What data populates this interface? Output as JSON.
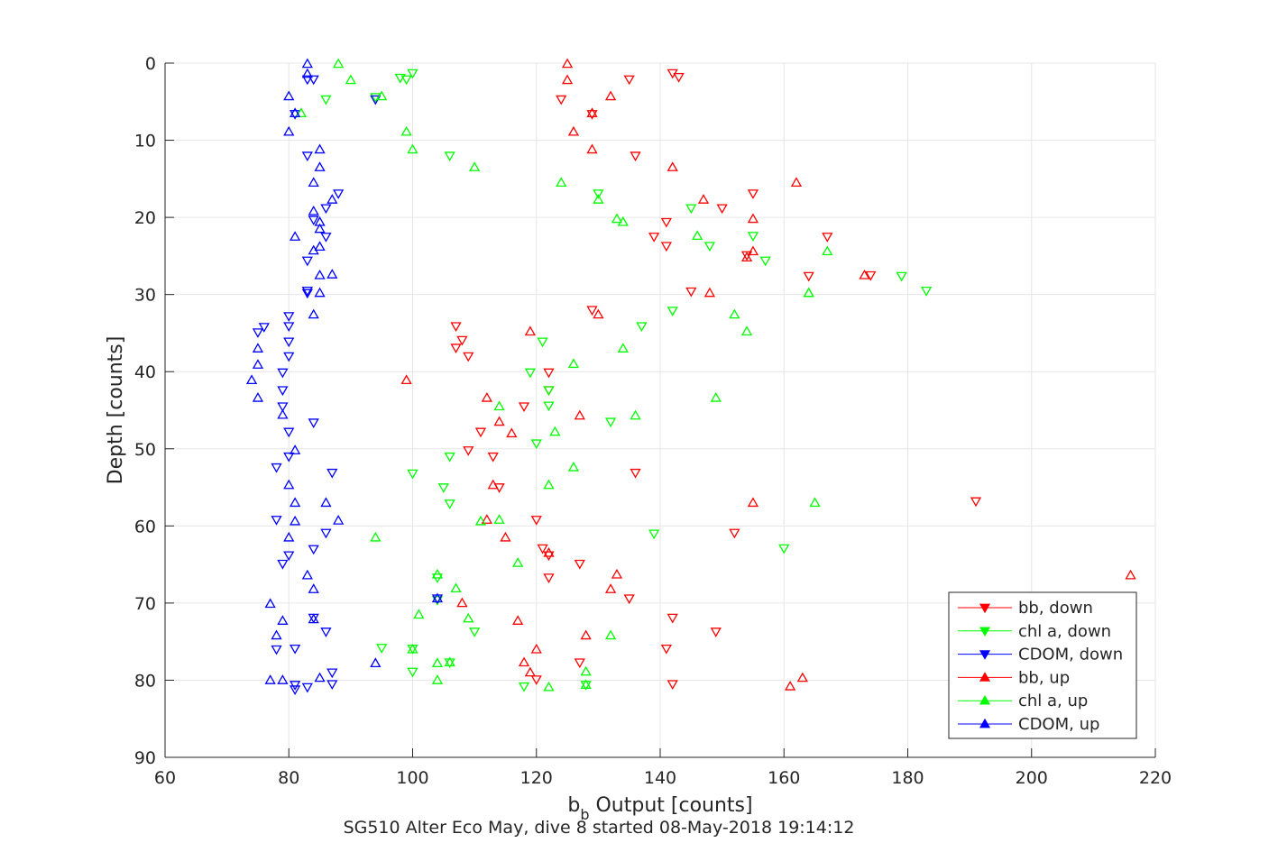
{
  "chart_data": {
    "type": "scatter",
    "xlabel_main": "b",
    "xlabel_sub": "b",
    "xlabel_rest": " Output [counts]",
    "ylabel": "Depth [counts]",
    "subtitle": "SG510 Alter Eco May, dive 8 started 08-May-2018 19:14:12",
    "xlim": [
      60,
      220
    ],
    "ylim": [
      0,
      90
    ],
    "y_reversed": true,
    "grid": true,
    "legend_position": "bottom-right",
    "xticks": [
      "60",
      "80",
      "100",
      "120",
      "140",
      "160",
      "180",
      "200",
      "220"
    ],
    "yticks": [
      "0",
      "10",
      "20",
      "30",
      "40",
      "50",
      "60",
      "70",
      "80",
      "90"
    ],
    "series": [
      {
        "name": "bb, down",
        "color": "#ff0000",
        "marker": "triangle-down",
        "x": [
          143,
          142,
          135,
          124,
          129,
          136,
          155,
          150,
          141,
          139,
          141,
          154,
          164,
          145,
          129,
          107,
          108,
          109,
          107,
          122,
          122,
          118,
          111,
          109,
          113,
          114,
          136,
          120,
          121,
          122,
          127,
          122,
          135,
          142,
          149,
          141,
          127,
          120,
          142,
          174,
          167,
          191,
          152
        ],
        "y": [
          1.8,
          1.3,
          2.1,
          4.7,
          6.6,
          12.0,
          16.9,
          18.8,
          20.6,
          22.5,
          23.7,
          24.9,
          27.6,
          29.6,
          32.0,
          34.1,
          35.9,
          38.0,
          36.9,
          40.1,
          42.4,
          44.5,
          47.8,
          50.2,
          51.0,
          55.0,
          53.1,
          59.2,
          62.9,
          63.8,
          64.9,
          66.7,
          69.4,
          71.9,
          73.7,
          75.9,
          77.7,
          79.9,
          80.5,
          27.5,
          22.5,
          56.8,
          60.9
        ]
      },
      {
        "name": "chl a, down",
        "color": "#00ff00",
        "marker": "triangle-down",
        "x": [
          98,
          100,
          99,
          86,
          94,
          106,
          130,
          145,
          148,
          155,
          157,
          183,
          179,
          142,
          137,
          121,
          119,
          100,
          122,
          106,
          120,
          105,
          106,
          139,
          160,
          122,
          104,
          106,
          110,
          95,
          100,
          104,
          118,
          100,
          128,
          132
        ],
        "y": [
          1.9,
          1.3,
          2.1,
          4.7,
          4.4,
          12.0,
          16.9,
          18.8,
          23.7,
          22.4,
          25.6,
          29.5,
          27.6,
          32.1,
          34.1,
          36.1,
          40.1,
          53.2,
          42.4,
          51.0,
          49.3,
          55.0,
          57.1,
          61.0,
          62.9,
          44.4,
          66.7,
          77.7,
          73.7,
          75.8,
          78.9,
          69.6,
          80.8,
          75.9,
          80.6,
          46.5
        ]
      },
      {
        "name": "CDOM, down",
        "color": "#0000ff",
        "marker": "triangle-down",
        "x": [
          83,
          84,
          94,
          81,
          83,
          88,
          86,
          84,
          86,
          83,
          80,
          83,
          80,
          83,
          76,
          75,
          80,
          80,
          79,
          79,
          79,
          84,
          80,
          80,
          78,
          87,
          84,
          86,
          78,
          80,
          79,
          81,
          104,
          86,
          81,
          81,
          87,
          87,
          83,
          84,
          78
        ],
        "y": [
          2.1,
          2.1,
          4.7,
          6.6,
          12.0,
          16.9,
          18.8,
          20.3,
          22.5,
          25.6,
          32.8,
          29.5,
          34.1,
          29.8,
          34.2,
          34.9,
          36.1,
          38.0,
          40.1,
          42.4,
          44.5,
          46.6,
          47.8,
          51.0,
          52.4,
          53.1,
          63.0,
          60.9,
          59.2,
          63.8,
          64.9,
          75.9,
          69.4,
          73.7,
          80.6,
          81.2,
          80.5,
          79.0,
          80.9,
          71.9,
          76.0
        ]
      },
      {
        "name": "bb, up",
        "color": "#ff0000",
        "marker": "triangle-up",
        "x": [
          125,
          125,
          132,
          129,
          126,
          129,
          142,
          147,
          155,
          155,
          154,
          148,
          162,
          173,
          130,
          119,
          99,
          112,
          127,
          114,
          116,
          155,
          112,
          115,
          122,
          132,
          108,
          117,
          128,
          120,
          119,
          118,
          161,
          163,
          216,
          133,
          113
        ],
        "y": [
          0.1,
          2.2,
          4.3,
          6.5,
          8.9,
          11.2,
          13.5,
          17.7,
          20.2,
          24.4,
          25.2,
          29.8,
          15.5,
          27.5,
          32.6,
          34.8,
          41.1,
          43.4,
          45.7,
          46.5,
          48.0,
          57.0,
          59.2,
          61.5,
          63.5,
          68.2,
          70.0,
          72.3,
          74.2,
          76.0,
          79.0,
          77.7,
          80.8,
          79.7,
          66.4,
          66.3,
          54.7
        ]
      },
      {
        "name": "chl a, up",
        "color": "#00ff00",
        "marker": "triangle-up",
        "x": [
          88,
          90,
          95,
          82,
          99,
          100,
          110,
          124,
          130,
          133,
          134,
          146,
          167,
          164,
          152,
          154,
          134,
          126,
          114,
          149,
          123,
          136,
          126,
          122,
          114,
          111,
          117,
          94,
          104,
          107,
          101,
          109,
          132,
          104,
          100,
          104,
          106,
          122,
          128,
          128,
          164,
          165
        ],
        "y": [
          0.1,
          2.2,
          4.3,
          6.5,
          8.9,
          11.2,
          13.5,
          15.5,
          17.7,
          20.2,
          20.6,
          22.4,
          24.4,
          29.8,
          32.6,
          34.8,
          37.0,
          39.0,
          44.5,
          43.4,
          47.8,
          45.7,
          52.4,
          54.7,
          59.2,
          59.4,
          64.8,
          61.5,
          66.3,
          68.1,
          71.5,
          72.0,
          74.2,
          77.8,
          76.0,
          80.0,
          77.7,
          80.9,
          78.9,
          80.6,
          29.8,
          57.0
        ]
      },
      {
        "name": "CDOM, up",
        "color": "#0000ff",
        "marker": "triangle-up",
        "x": [
          83,
          83,
          80,
          81,
          80,
          85,
          85,
          84,
          87,
          85,
          84,
          85,
          85,
          85,
          84,
          87,
          85,
          84,
          81,
          74,
          75,
          75,
          75,
          79,
          80,
          81,
          81,
          80,
          81,
          83,
          86,
          88,
          84,
          84,
          79,
          77,
          79,
          78,
          94,
          104,
          85,
          77
        ],
        "y": [
          0.1,
          1.4,
          4.3,
          6.5,
          8.9,
          11.2,
          13.5,
          15.5,
          17.7,
          20.6,
          24.3,
          23.8,
          27.5,
          29.8,
          32.6,
          27.4,
          21.5,
          19.2,
          22.5,
          41.1,
          43.4,
          39.1,
          37.0,
          45.6,
          54.7,
          50.2,
          57.0,
          61.5,
          59.4,
          66.4,
          57.0,
          59.3,
          68.2,
          72.1,
          72.3,
          70.1,
          80.0,
          74.2,
          77.8,
          69.4,
          79.7,
          80.0
        ]
      }
    ]
  }
}
